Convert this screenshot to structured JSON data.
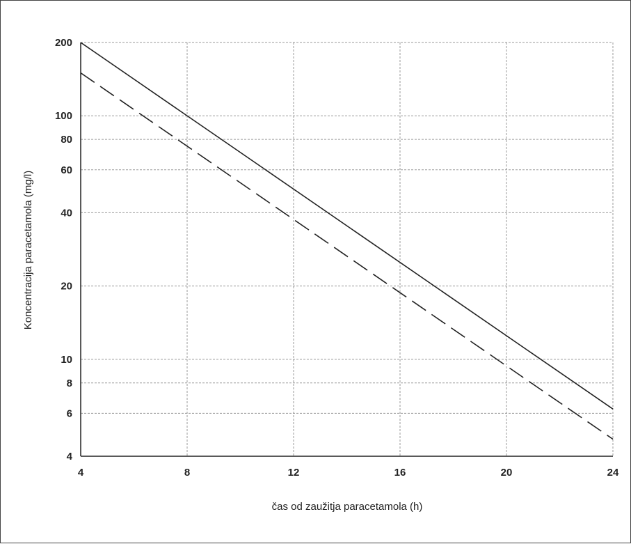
{
  "chart_data": {
    "type": "line",
    "xlabel": "čas od zaužitja paracetamola (h)",
    "ylabel": "Koncentracija  paracetamola (mg/l)",
    "xlim": [
      4,
      24
    ],
    "ylim": [
      4,
      200
    ],
    "yscale": "log",
    "grid": true,
    "x_ticks": [
      "4",
      "8",
      "12",
      "16",
      "20",
      "24"
    ],
    "y_ticks": [
      "4",
      "6",
      "8",
      "10",
      "20",
      "40",
      "60",
      "80",
      "100",
      "200"
    ],
    "series": [
      {
        "style": "solid",
        "x": [
          4,
          24
        ],
        "y": [
          200,
          6.25
        ]
      },
      {
        "style": "dashed",
        "x": [
          4,
          24
        ],
        "y": [
          150,
          4.7
        ]
      }
    ]
  }
}
